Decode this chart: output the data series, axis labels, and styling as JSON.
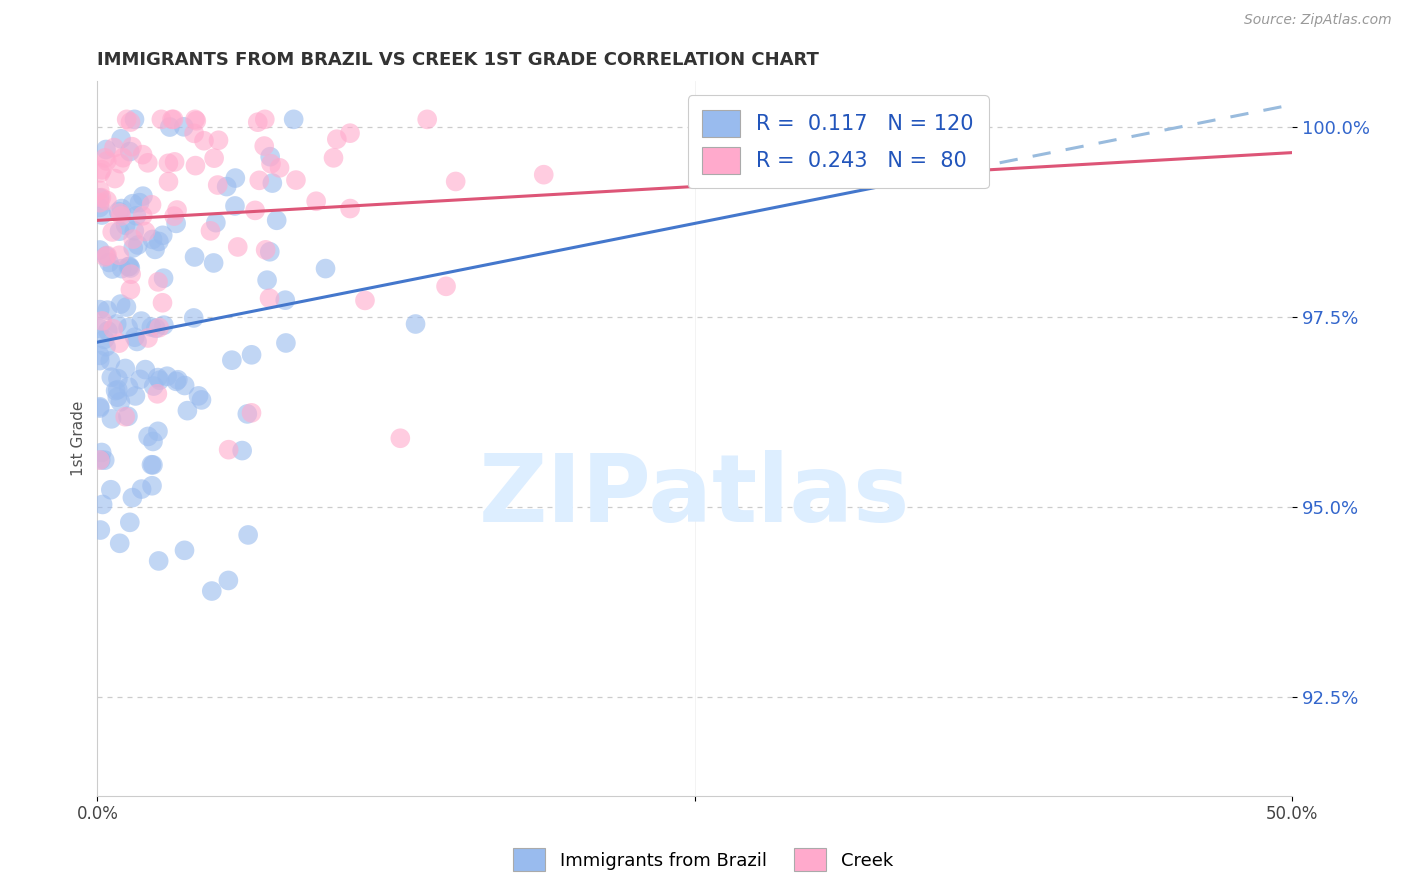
{
  "title": "IMMIGRANTS FROM BRAZIL VS CREEK 1ST GRADE CORRELATION CHART",
  "source": "Source: ZipAtlas.com",
  "ylabel": "1st Grade",
  "ytick_labels": [
    "92.5%",
    "95.0%",
    "97.5%",
    "100.0%"
  ],
  "ytick_values": [
    0.925,
    0.95,
    0.975,
    1.0
  ],
  "xrange": [
    0.0,
    0.5
  ],
  "yrange": [
    0.912,
    1.006
  ],
  "legend_label1": "Immigrants from Brazil",
  "legend_label2": "Creek",
  "blue_scatter_color": "#99bbee",
  "pink_scatter_color": "#ffaacc",
  "trendline_blue": "#4477cc",
  "trendline_pink": "#dd5577",
  "dashed_color": "#99bbdd",
  "watermark_color": "#ddeeff",
  "background_color": "#ffffff",
  "grid_color": "#cccccc",
  "title_color": "#333333",
  "source_color": "#999999",
  "ytick_color": "#3366cc",
  "seed1": 12,
  "seed2": 99
}
